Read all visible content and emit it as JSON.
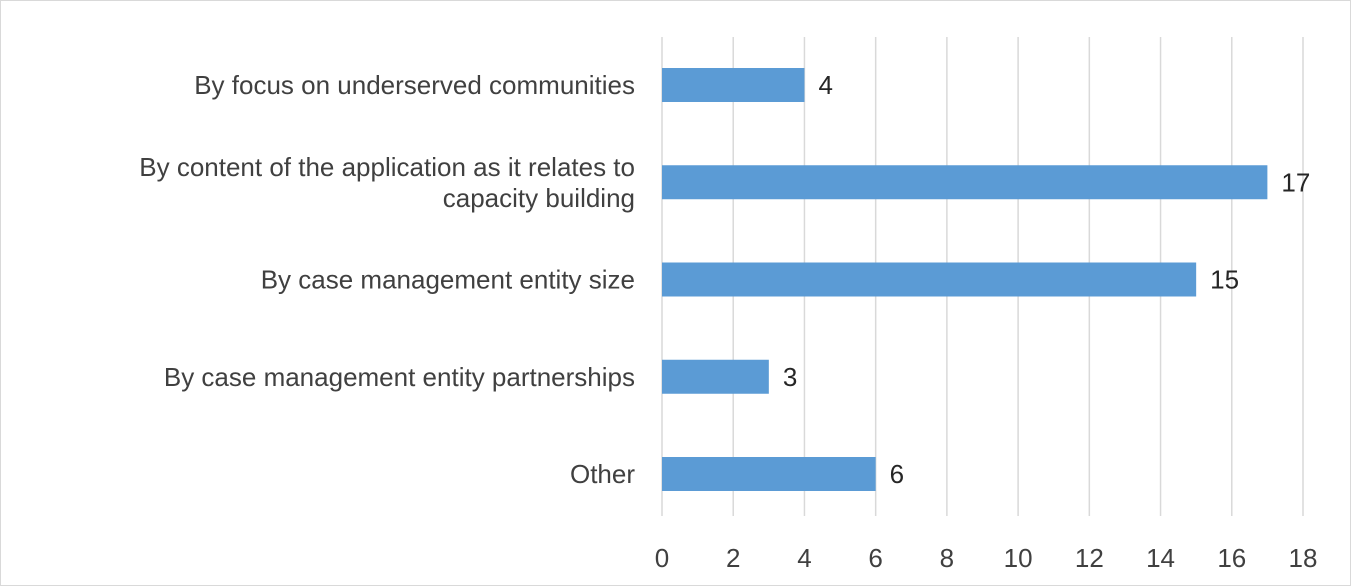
{
  "chart_data": {
    "type": "bar",
    "orientation": "horizontal",
    "categories": [
      "By focus on underserved communities",
      "By content of the application as it relates to capacity building",
      "By case management entity size",
      "By case management entity partnerships",
      "Other"
    ],
    "category_lines": [
      [
        "By focus on underserved communities"
      ],
      [
        "By content of the application as it relates to",
        "capacity building"
      ],
      [
        "By case management entity size"
      ],
      [
        "By case management entity partnerships"
      ],
      [
        "Other"
      ]
    ],
    "values": [
      4,
      17,
      15,
      3,
      6
    ],
    "data_labels": [
      "4",
      "17",
      "15",
      "3",
      "6"
    ],
    "xlim": [
      0,
      18
    ],
    "xticks": [
      "0",
      "2",
      "4",
      "6",
      "8",
      "10",
      "12",
      "14",
      "16",
      "18"
    ],
    "title": "",
    "xlabel": "",
    "ylabel": "",
    "grid": "vertical",
    "legend": "none",
    "colors": {
      "bar": "#5b9bd5",
      "grid": "#d9d9d9",
      "label_text": "#404040",
      "value_text": "#262626"
    }
  }
}
